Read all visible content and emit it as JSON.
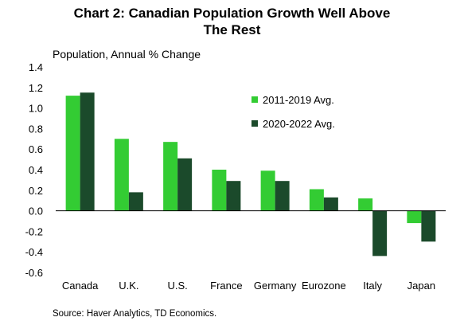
{
  "chart_data": {
    "type": "bar",
    "title_lines": [
      "Chart 2: Canadian Population Growth Well Above",
      "The Rest"
    ],
    "ylabel": "Population, Annual % Change",
    "source": "Source: Haver Analytics, TD Economics.",
    "categories": [
      "Canada",
      "U.K.",
      "U.S.",
      "France",
      "Germany",
      "Eurozone",
      "Italy",
      "Japan"
    ],
    "series": [
      {
        "name": "2011-2019 Avg.",
        "color": "#33cc33",
        "values": [
          1.12,
          0.7,
          0.67,
          0.4,
          0.39,
          0.21,
          0.12,
          -0.12
        ]
      },
      {
        "name": "2020-2022 Avg.",
        "color": "#1b4a2b",
        "values": [
          1.15,
          0.18,
          0.51,
          0.29,
          0.29,
          0.13,
          -0.44,
          -0.3
        ]
      }
    ],
    "ylim": [
      -0.6,
      1.4
    ],
    "yticks": [
      "1.4",
      "1.2",
      "1.0",
      "0.8",
      "0.6",
      "0.4",
      "0.2",
      "0.0",
      "-0.2",
      "-0.4",
      "-0.6"
    ],
    "legend_position": "top-right",
    "grid": false
  }
}
